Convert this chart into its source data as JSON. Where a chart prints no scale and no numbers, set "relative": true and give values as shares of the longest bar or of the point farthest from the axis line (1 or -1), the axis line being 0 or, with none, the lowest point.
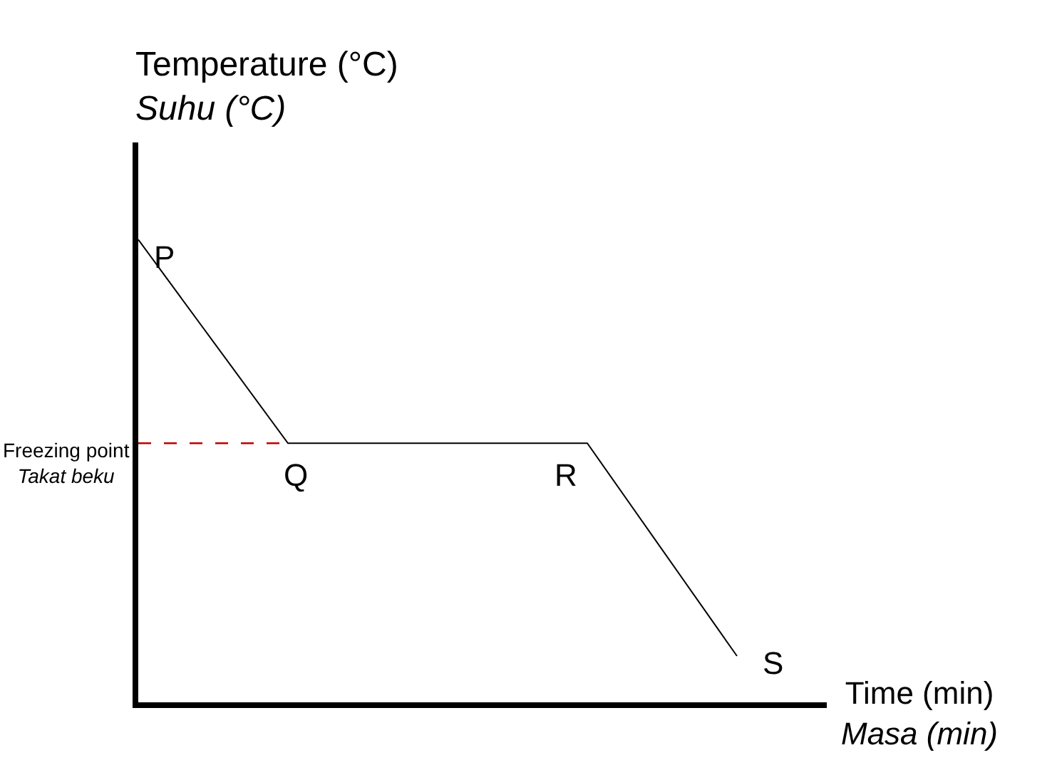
{
  "chart_data": {
    "type": "line",
    "relative": true,
    "xlabel": "Time (min)\nMasa (min)",
    "ylabel": "Temperature (°C)\nSuhu (°C)",
    "categories": [
      null,
      null,
      null,
      null,
      null
    ],
    "series": [
      {
        "color": "#000000",
        "values": [
          1,
          0.56,
          0.56,
          0.56,
          0.1
        ]
      }
    ],
    "annotations": [
      "P",
      "Q",
      "R",
      "S"
    ],
    "ref_lines": [
      {
        "axis": "y",
        "value": 0.56,
        "label": "Freezing point\nTakat beku",
        "color": "#c00000",
        "line_style": "dashed"
      }
    ],
    "marker": "none",
    "legend": false
  }
}
